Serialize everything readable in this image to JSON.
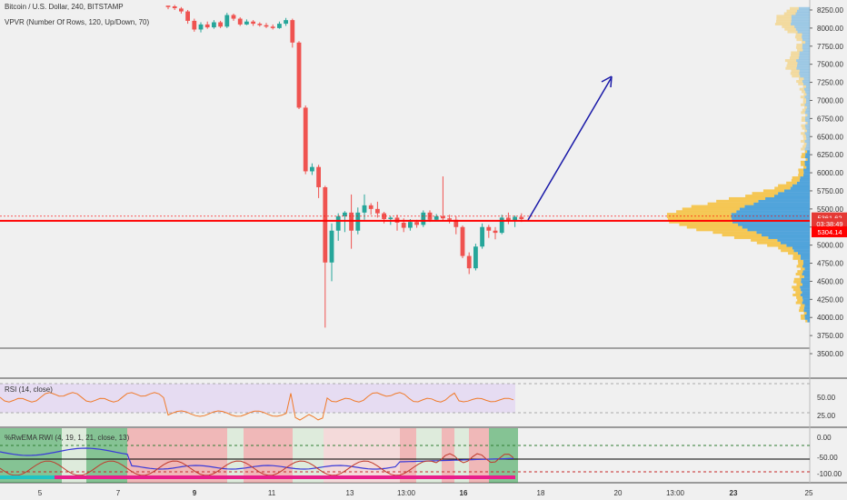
{
  "legends": {
    "main_title": "Bitcoin / U.S. Dollar, 240, BITSTAMP",
    "main_sub": "VPVR (Number Of Rows, 120, Up/Down, 70)",
    "rsi": "RSI (14, close)",
    "rwi": "%RwEMA RWI (4, 19, 1, 21, close, 13)"
  },
  "colors": {
    "background": "#f0f0f0",
    "up": "#26a69a",
    "down": "#ef5350",
    "price_line": "#ff0000",
    "arrow": "#1a1aa8",
    "vp_up": "#3f9bd8",
    "vp_down": "#f5c242",
    "rsi": "#f07a2a",
    "rsi_band": "#e6dcf2"
  },
  "price_axis": {
    "ticks": [
      "8250.00",
      "8000.00",
      "7750.00",
      "7500.00",
      "7250.00",
      "7000.00",
      "6750.00",
      "6500.00",
      "6250.00",
      "6000.00",
      "5750.00",
      "5500.00",
      "5250.00",
      "5000.00",
      "4750.00",
      "4500.00",
      "4250.00",
      "4000.00",
      "3750.00",
      "3500.00"
    ],
    "last_price": "5361.62",
    "countdown": "03:38:49",
    "low_marker": "5304.14"
  },
  "rsi_axis": {
    "ticks": [
      "50.00",
      "25.00"
    ]
  },
  "rwi_axis": {
    "ticks": [
      "0.00",
      "-50.00",
      "-100.00"
    ]
  },
  "time_axis": {
    "ticks": [
      "5",
      "7",
      "9",
      "11",
      "13",
      "13:00",
      "16",
      "18",
      "20",
      "13:00",
      "23",
      "25"
    ],
    "bold": [
      "9",
      "16",
      "23"
    ]
  },
  "candles": [
    [
      8310,
      8290,
      8300,
      8260
    ],
    [
      8300,
      8275,
      8320,
      8250
    ],
    [
      8270,
      8230,
      8290,
      8200
    ],
    [
      8230,
      8100,
      8250,
      8060
    ],
    [
      8100,
      7980,
      8130,
      7950
    ],
    [
      7980,
      8050,
      8080,
      7940
    ],
    [
      8050,
      8010,
      8090,
      7990
    ],
    [
      8010,
      8080,
      8110,
      7990
    ],
    [
      8080,
      8020,
      8100,
      8000
    ],
    [
      8020,
      8180,
      8210,
      8000
    ],
    [
      8180,
      8130,
      8200,
      8100
    ],
    [
      8130,
      8050,
      8150,
      8030
    ],
    [
      8050,
      8090,
      8120,
      8040
    ],
    [
      8090,
      8060,
      8110,
      8030
    ],
    [
      8060,
      8040,
      8080,
      8020
    ],
    [
      8040,
      8020,
      8070,
      8000
    ],
    [
      8020,
      8000,
      8050,
      7980
    ],
    [
      8000,
      8060,
      8090,
      7990
    ],
    [
      8060,
      8110,
      8140,
      8030
    ],
    [
      8110,
      7800,
      8130,
      7730
    ],
    [
      7800,
      6900,
      7820,
      6880
    ],
    [
      6900,
      6020,
      6930,
      5980
    ],
    [
      6020,
      6080,
      6130,
      5970
    ],
    [
      6080,
      5800,
      6110,
      5650
    ],
    [
      5800,
      4760,
      5820,
      3860
    ],
    [
      4760,
      5200,
      5300,
      4500
    ],
    [
      5200,
      5400,
      5440,
      5060
    ],
    [
      5400,
      5450,
      5470,
      5180
    ],
    [
      5450,
      5200,
      5700,
      4950
    ],
    [
      5200,
      5450,
      5520,
      5150
    ],
    [
      5450,
      5550,
      5700,
      5350
    ],
    [
      5550,
      5500,
      5580,
      5420
    ],
    [
      5500,
      5440,
      5600,
      5380
    ],
    [
      5440,
      5360,
      5460,
      5300
    ],
    [
      5360,
      5380,
      5400,
      5280
    ],
    [
      5380,
      5310,
      5420,
      5200
    ],
    [
      5310,
      5240,
      5370,
      5180
    ],
    [
      5240,
      5320,
      5360,
      5200
    ],
    [
      5320,
      5280,
      5350,
      5240
    ],
    [
      5280,
      5450,
      5480,
      5250
    ],
    [
      5450,
      5350,
      5480,
      5320
    ],
    [
      5350,
      5400,
      5430,
      5330
    ],
    [
      5400,
      5370,
      5950,
      5340
    ],
    [
      5370,
      5350,
      5420,
      5300
    ],
    [
      5350,
      5250,
      5400,
      5150
    ],
    [
      5250,
      4850,
      5270,
      4820
    ],
    [
      4850,
      4680,
      4900,
      4600
    ],
    [
      4680,
      4980,
      5020,
      4650
    ],
    [
      4980,
      5250,
      5300,
      4950
    ],
    [
      5250,
      5200,
      5280,
      5100
    ],
    [
      5200,
      5170,
      5250,
      5080
    ],
    [
      5170,
      5380,
      5420,
      5150
    ],
    [
      5380,
      5330,
      5450,
      5290
    ],
    [
      5330,
      5390,
      5410,
      5250
    ],
    [
      5390,
      5360,
      5440,
      5320
    ]
  ]
}
